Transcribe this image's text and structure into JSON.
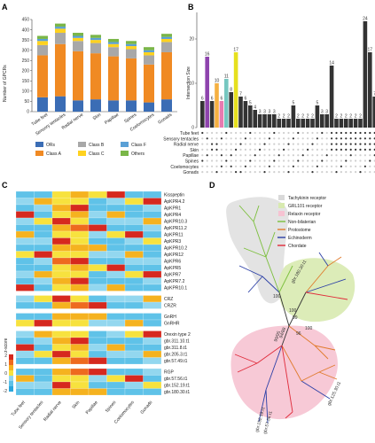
{
  "panels": {
    "a": "A",
    "b": "B",
    "c": "C",
    "d": "D"
  },
  "colors": {
    "ORs": "#3b6db5",
    "ClassA": "#f08a23",
    "ClassB": "#a8a8a8",
    "ClassC": "#ffd21f",
    "ClassF": "#5aa0d6",
    "Others": "#7ab648"
  },
  "chart_data": [
    {
      "type": "bar",
      "panel": "A",
      "ylabel": "Number of GPCRs",
      "ylim": [
        0,
        450
      ],
      "yticks": [
        0,
        50,
        100,
        150,
        200,
        250,
        300,
        350,
        400,
        450
      ],
      "categories": [
        "Tube feet",
        "Sensory tentacles",
        "Radial nerve",
        "Skin",
        "Papillae",
        "Spines",
        "Coelomocytes",
        "Gonads"
      ],
      "series": [
        {
          "name": "ORs",
          "values": [
            70,
            75,
            55,
            60,
            55,
            55,
            45,
            60
          ]
        },
        {
          "name": "Class A",
          "values": [
            205,
            255,
            240,
            225,
            215,
            205,
            185,
            230
          ]
        },
        {
          "name": "Class B",
          "values": [
            50,
            55,
            50,
            50,
            45,
            45,
            45,
            50
          ]
        },
        {
          "name": "Class C",
          "values": [
            20,
            20,
            15,
            15,
            15,
            15,
            15,
            15
          ]
        },
        {
          "name": "Class F",
          "values": [
            10,
            10,
            10,
            10,
            10,
            10,
            10,
            10
          ]
        },
        {
          "name": "Others",
          "values": [
            15,
            15,
            15,
            15,
            15,
            15,
            15,
            15
          ]
        }
      ],
      "legend": [
        "ORs",
        "Class B",
        "Class F",
        "Class A",
        "Class C",
        "Others"
      ]
    },
    {
      "type": "bar",
      "panel": "B",
      "ylabel": "Intersection Size",
      "yticks": [
        0,
        10,
        20
      ],
      "values": [
        6,
        16,
        6,
        10,
        6,
        11,
        8,
        17,
        7,
        6,
        5,
        4,
        3,
        3,
        3,
        3,
        2,
        2,
        2,
        5,
        2,
        2,
        2,
        2,
        5,
        3,
        3,
        14,
        2,
        2,
        2,
        2,
        2,
        2,
        24,
        17,
        7,
        6
      ],
      "set_labels": [
        "Tube feet",
        "Sensory tentacles",
        "Radial nerve",
        "Skin",
        "Papillae",
        "Spines",
        "Coelomocytes",
        "Gonads"
      ]
    }
  ],
  "heatmap": {
    "groups": [
      {
        "labels": [
          "Kisspeptin",
          "ApKPR4.2",
          "ApKPR1",
          "ApKPR4",
          "ApKPR10.3",
          "ApKPR11.2",
          "ApKPR11",
          "ApKPR3",
          "ApKPR10.2",
          "ApKPR12",
          "ApKPR6",
          "ApKPR5",
          "ApKPR7",
          "ApKPR7.2",
          "ApKPR10.1"
        ]
      },
      {
        "labels": [
          "CRZ",
          "CRZR"
        ]
      },
      {
        "labels": [
          "GnRH",
          "GnRHR"
        ]
      },
      {
        "labels": [
          "Orexin type 2",
          "gbr.311.10.t1",
          "gbr.311.8.t1",
          "gbr.205.3.t1",
          "gbr.57.49.t1"
        ]
      },
      {
        "labels": [
          "RGP",
          "gbr.57.56.t1",
          "gbr.152.19.t1",
          "gbr.180.30.t1"
        ]
      }
    ],
    "columns": [
      "Tube feet",
      "Sensory tentacles",
      "Radial nerve",
      "Skin",
      "Papillae",
      "Spines",
      "Coelomocytes",
      "Gonads"
    ],
    "scale_title": "z-score",
    "scale_ticks": [
      "2",
      "1",
      "0",
      "-1",
      "-2"
    ]
  },
  "tree": {
    "legend": [
      {
        "label": "Tachykinin receptor",
        "color": "#d9d9d9"
      },
      {
        "label": "GRL101 receptor",
        "color": "#d8eab0"
      },
      {
        "label": "Relaxin receptor",
        "color": "#f6c3d2"
      },
      {
        "label": "Non-bilaterian",
        "color": "#7bbf3b"
      },
      {
        "label": "Protostome",
        "color": "#e07a2b"
      },
      {
        "label": "Echinoderm",
        "color": "#2b3fa6"
      },
      {
        "label": "Chordate",
        "color": "#e02b3a"
      }
    ],
    "nodes": [
      "gbr.180.30.t1",
      "gbr.152.19.t1",
      "gbr.57.56.t1",
      "gbr.125.30.t1"
    ],
    "support": [
      "100",
      "100",
      "99",
      "96",
      "99/95",
      "94/88",
      "100"
    ]
  }
}
